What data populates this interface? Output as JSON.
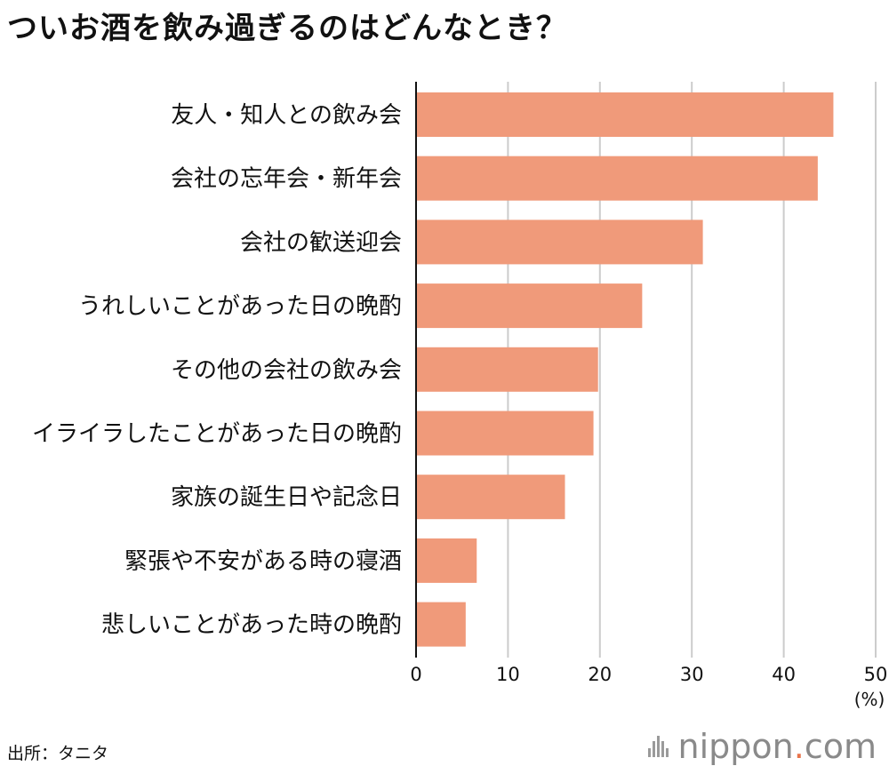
{
  "title": "ついお酒を飲み過ぎるのはどんなとき？",
  "source": "出所：タニタ",
  "brand": {
    "name": "nippon",
    "dot": ".",
    "tld": "com"
  },
  "colors": {
    "bar": "#f09a7a",
    "grid": "#cccccc",
    "axis": "#111111"
  },
  "chart_data": {
    "type": "bar",
    "orientation": "horizontal",
    "categories": [
      "友人・知人との飲み会",
      "会社の忘年会・新年会",
      "会社の歓送迎会",
      "うれしいことがあった日の晩酌",
      "その他の会社の飲み会",
      "イライラしたことがあった日の晩酌",
      "家族の誕生日や記念日",
      "緊張や不安がある時の寝酒",
      "悲しいことがあった時の晩酌"
    ],
    "values": [
      45.4,
      43.7,
      31.2,
      24.6,
      19.8,
      19.3,
      16.2,
      6.6,
      5.4
    ],
    "xlim": [
      0,
      50
    ],
    "xticks": [
      "0",
      "10",
      "20",
      "30",
      "40",
      "50"
    ],
    "unit": "(%)",
    "grid": true
  }
}
